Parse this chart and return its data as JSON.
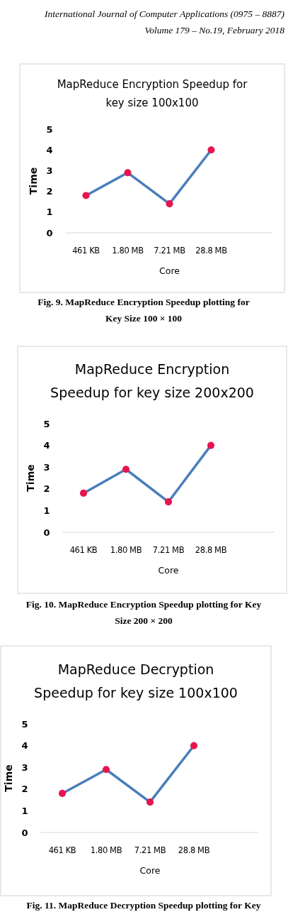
{
  "chart_data": [
    {
      "type": "line",
      "title": "MapReduce Encryption  Speedup for\nkey size 100x100",
      "xlabel": "Core",
      "ylabel": "Time",
      "categories": [
        "461 KB",
        "1.80 MB",
        "7.21 MB",
        "28.8 MB"
      ],
      "series": [
        {
          "color": "#4a7ebb",
          "values": [
            1.8,
            2.9,
            1.4,
            4.0
          ]
        }
      ],
      "ylim": [
        0,
        5
      ],
      "yticks": [
        0,
        1,
        2,
        3,
        4,
        5
      ],
      "marker": "circle",
      "grid": false,
      "annotations": [
        "International Journal of Computer Applications (0975 – 8887)\nVolume 179 – No.19, February 2018",
        "Fig. 9. MapReduce Encryption Speedup plotting for\nKey Size 100 × 100"
      ]
    },
    {
      "type": "line",
      "title": "MapReduce Encryption\nSpeedup for key size 200x200",
      "xlabel": "Core",
      "ylabel": "Time",
      "categories": [
        "461 KB",
        "1.80 MB",
        "7.21 MB",
        "28.8 MB"
      ],
      "series": [
        {
          "color": "#4a7ebb",
          "values": [
            1.8,
            2.9,
            1.4,
            4.0
          ]
        }
      ],
      "ylim": [
        0,
        5
      ],
      "yticks": [
        0,
        1,
        2,
        3,
        4,
        5
      ],
      "marker": "circle",
      "grid": false,
      "annotations": [
        "Fig. 10. MapReduce Encryption Speedup plotting for Key\nSize 200 × 200"
      ]
    },
    {
      "type": "line",
      "title": "MapReduce Decryption\nSpeedup for key size 100x100",
      "xlabel": "Core",
      "ylabel": "Time",
      "categories": [
        "461 KB",
        "1.80 MB",
        "7.21 MB",
        "28.8 MB"
      ],
      "series": [
        {
          "color": "#4a7ebb",
          "values": [
            1.8,
            2.9,
            1.4,
            4.0
          ]
        }
      ],
      "ylim": [
        0,
        5
      ],
      "yticks": [
        0,
        1,
        2,
        3,
        4,
        5
      ],
      "marker": "circle",
      "grid": false,
      "annotations": [
        "Fig. 11. MapReduce Decryption Speedup plotting for Key"
      ]
    }
  ]
}
